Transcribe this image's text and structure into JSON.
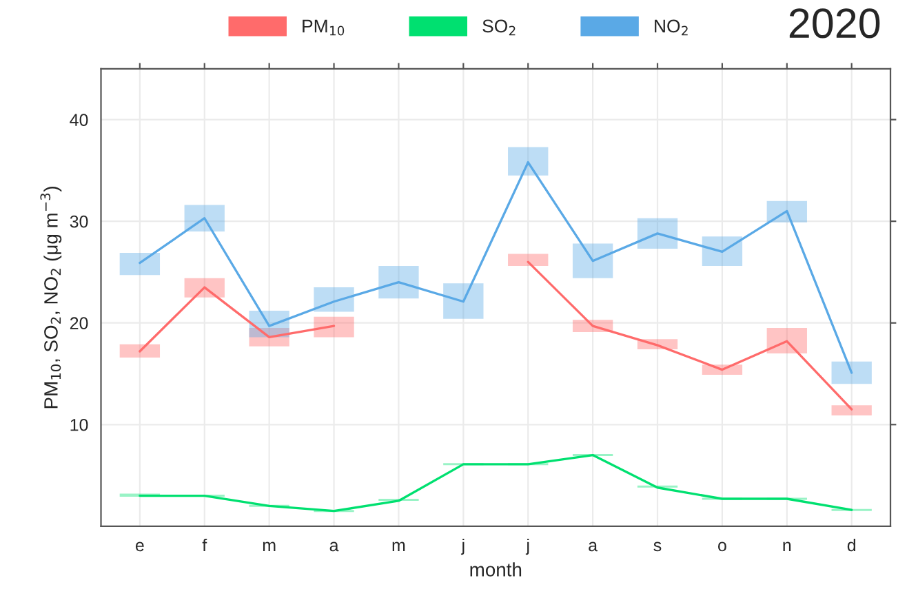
{
  "chart_data": {
    "type": "line",
    "title": "2020",
    "xlabel": "month",
    "ylabel": "PM$_{10}$, SO$_{2}$, NO$_{2}$ (μg m$^{−3}$)",
    "categories": [
      "e",
      "f",
      "m",
      "a",
      "m",
      "j",
      "j",
      "a",
      "s",
      "o",
      "n",
      "d"
    ],
    "series": [
      {
        "name": "PM$_{10}$",
        "color": "#ff6b6b",
        "values": [
          17.2,
          23.5,
          18.6,
          19.7,
          null,
          null,
          26.0,
          19.7,
          17.8,
          15.4,
          18.2,
          11.5
        ],
        "errors": [
          [
            16.6,
            17.9
          ],
          [
            22.5,
            24.4
          ],
          [
            17.7,
            19.5
          ],
          [
            18.6,
            20.6
          ],
          null,
          null,
          [
            25.6,
            26.8
          ],
          [
            19.1,
            20.3
          ],
          [
            17.4,
            18.4
          ],
          [
            14.9,
            15.9
          ],
          [
            17.0,
            19.5
          ],
          [
            10.9,
            11.9
          ]
        ]
      },
      {
        "name": "SO$_{2}$",
        "color": "#00e070",
        "values": [
          3.0,
          3.0,
          2.0,
          1.5,
          2.5,
          6.1,
          6.1,
          7.0,
          3.8,
          2.7,
          2.7,
          1.6
        ],
        "errors": [
          [
            2.9,
            3.2
          ],
          [
            2.9,
            3.1
          ],
          [
            1.9,
            2.1
          ],
          [
            1.4,
            1.6
          ],
          [
            2.5,
            2.7
          ],
          [
            6.0,
            6.2
          ],
          [
            6.0,
            6.2
          ],
          [
            6.9,
            7.1
          ],
          [
            3.8,
            4.0
          ],
          [
            2.6,
            2.8
          ],
          [
            2.6,
            2.8
          ],
          [
            1.5,
            1.7
          ]
        ]
      },
      {
        "name": "NO$_{2}$",
        "color": "#5aa9e6",
        "values": [
          25.9,
          30.3,
          19.7,
          22.1,
          24.0,
          22.1,
          35.8,
          26.1,
          28.8,
          27.0,
          31.0,
          15.1
        ],
        "errors": [
          [
            24.7,
            26.9
          ],
          [
            29.0,
            31.6
          ],
          [
            18.6,
            21.2
          ],
          [
            21.1,
            23.5
          ],
          [
            22.4,
            25.6
          ],
          [
            20.4,
            23.9
          ],
          [
            34.5,
            37.3
          ],
          [
            24.4,
            27.8
          ],
          [
            27.3,
            30.3
          ],
          [
            25.6,
            28.5
          ],
          [
            29.9,
            32.0
          ],
          [
            14.0,
            16.2
          ]
        ]
      }
    ],
    "ylim": [
      0,
      45
    ],
    "yticks": [
      10,
      20,
      30,
      40
    ],
    "grid": true,
    "legend": "top",
    "line_style": "solid"
  }
}
